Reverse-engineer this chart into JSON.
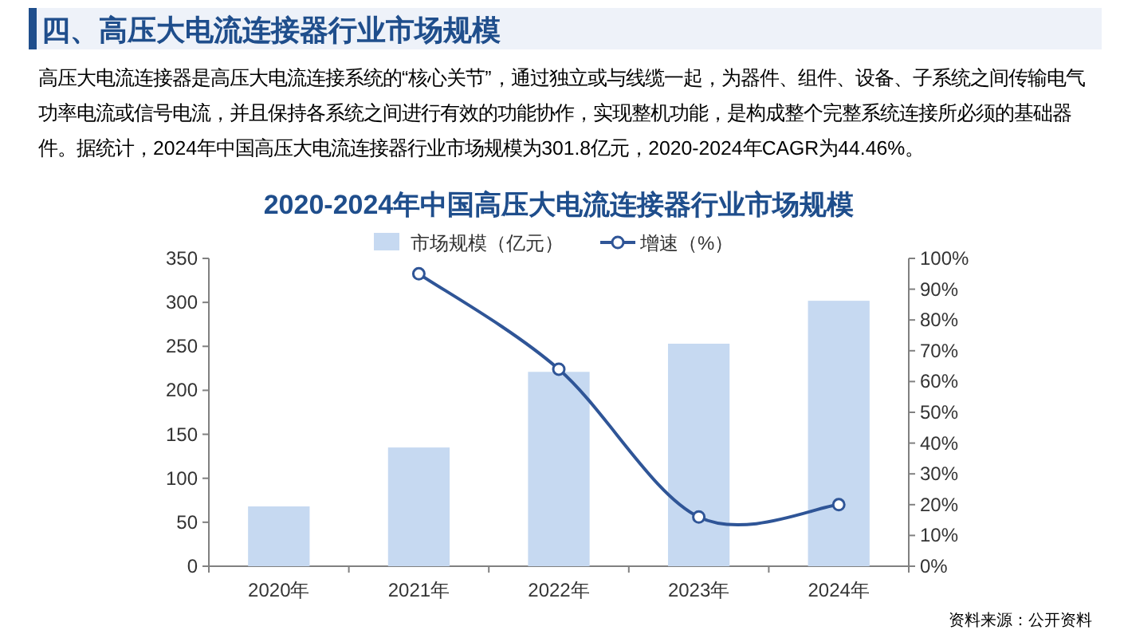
{
  "chart_data": {
    "type": "bar",
    "title": "四、高压大电流连接器行业市场规模",
    "subtitle": "2020-2024年中国高压大电流连接器行业市场规模",
    "annotations": [
      "高压大电流连接器是高压大电流连接系统的“核心关节”，通过独立或与线缆一起，为器件、组件、设备、子系统之间传输电气功率电流或信号电流，并且保持各系统之间进行有效的功能协作，实现整机功能，是构成整个完整系统连接所必须的基础器件。据统计，2024年中国高压大电流连接器行业市场规模为301.8亿元，2020-2024年CAGR为44.46%。",
      "资料来源：公开资料"
    ],
    "categories": [
      "2020年",
      "2021年",
      "2022年",
      "2023年",
      "2024年"
    ],
    "series": [
      {
        "name": "市场规模（亿元）",
        "color": "#c6d9f1",
        "values": [
          68,
          135,
          221,
          253,
          301.8
        ]
      },
      {
        "name": "增速（%）",
        "type": "line",
        "axis": "y2",
        "color": "#2f5597",
        "marker": "circle",
        "values": [
          null,
          95,
          64,
          16,
          20
        ]
      }
    ],
    "ylim": [
      0,
      350
    ],
    "yticks": [
      0,
      50,
      100,
      150,
      200,
      250,
      300,
      350
    ],
    "y2lim": [
      0,
      100
    ],
    "y2ticks": [
      {
        "value": 0,
        "label": "0%"
      },
      {
        "value": 10,
        "label": "10%"
      },
      {
        "value": 20,
        "label": "20%"
      },
      {
        "value": 30,
        "label": "30%"
      },
      {
        "value": 40,
        "label": "40%"
      },
      {
        "value": 50,
        "label": "50%"
      },
      {
        "value": 60,
        "label": "60%"
      },
      {
        "value": 70,
        "label": "70%"
      },
      {
        "value": 80,
        "label": "80%"
      },
      {
        "value": 90,
        "label": "90%"
      },
      {
        "value": 100,
        "label": "100%"
      }
    ],
    "legend": "top"
  }
}
